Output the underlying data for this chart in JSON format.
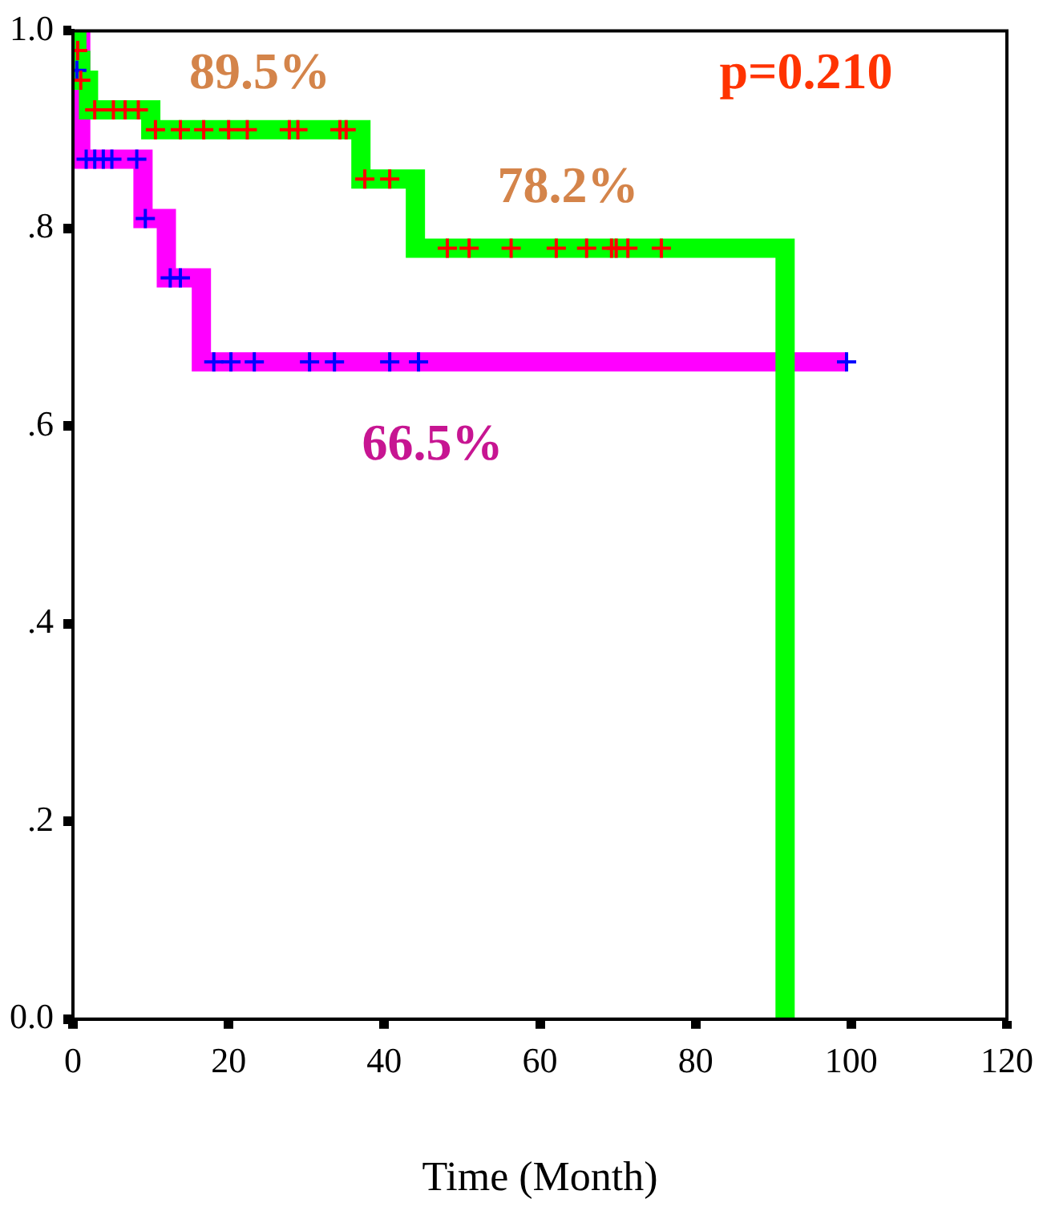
{
  "chart_data": {
    "type": "step",
    "xlabel": "Time (Month)",
    "xlim": [
      0,
      120
    ],
    "xticks": [
      0,
      20,
      40,
      60,
      80,
      100,
      120
    ],
    "ylim": [
      0,
      1
    ],
    "yticks": [
      {
        "value": 0,
        "label": "0.0"
      },
      {
        "value": 0.2,
        "label": ".2"
      },
      {
        "value": 0.4,
        "label": ".4"
      },
      {
        "value": 0.6,
        "label": ".6"
      },
      {
        "value": 0.8,
        "label": ".8"
      },
      {
        "value": 1,
        "label": "1.0"
      }
    ],
    "grid": false,
    "legend": false,
    "series": [
      {
        "color": "#00ff00",
        "x": [
          0,
          0.5,
          1,
          2,
          10,
          37,
          44,
          91.5
        ],
        "values": [
          1,
          0.97,
          0.95,
          0.92,
          0.9,
          0.85,
          0.78,
          0
        ]
      },
      {
        "color": "#ff00ff",
        "x": [
          0,
          1,
          9,
          12,
          16.5,
          99.4
        ],
        "values": [
          1,
          0.87,
          0.81,
          0.75,
          0.665,
          0.665
        ]
      },
      {
        "type": "scatter",
        "marker": "cross",
        "color": "#ff0000",
        "x": [
          0.6,
          1,
          2.8,
          5.2,
          6.7,
          8.4,
          10.6,
          13.8,
          16.8,
          20,
          22.4,
          27.8,
          28.9,
          34.3,
          35.1,
          37.5,
          40.7,
          48.1,
          50.9,
          56.3,
          62.1,
          66,
          69.2,
          69.8,
          71.3,
          75.6
        ],
        "values": [
          0.98,
          0.95,
          0.92,
          0.92,
          0.92,
          0.92,
          0.9,
          0.9,
          0.9,
          0.9,
          0.9,
          0.9,
          0.9,
          0.9,
          0.9,
          0.85,
          0.85,
          0.78,
          0.78,
          0.78,
          0.78,
          0.78,
          0.78,
          0.78,
          0.78,
          0.78
        ]
      },
      {
        "type": "scatter",
        "marker": "cross",
        "color": "#0000ff",
        "x": [
          0.5,
          1.7,
          2.8,
          3.9,
          5,
          8.2,
          9.3,
          12.5,
          13.8,
          18.1,
          20.3,
          23.3,
          30.4,
          33.6,
          40.7,
          44.4,
          99.4
        ],
        "values": [
          0.96,
          0.87,
          0.87,
          0.87,
          0.87,
          0.87,
          0.81,
          0.75,
          0.75,
          0.665,
          0.665,
          0.665,
          0.665,
          0.665,
          0.665,
          0.665,
          0.665
        ]
      }
    ],
    "annotations": [
      "89.5%",
      "78.2%",
      "66.5%",
      "p=0.210"
    ]
  }
}
